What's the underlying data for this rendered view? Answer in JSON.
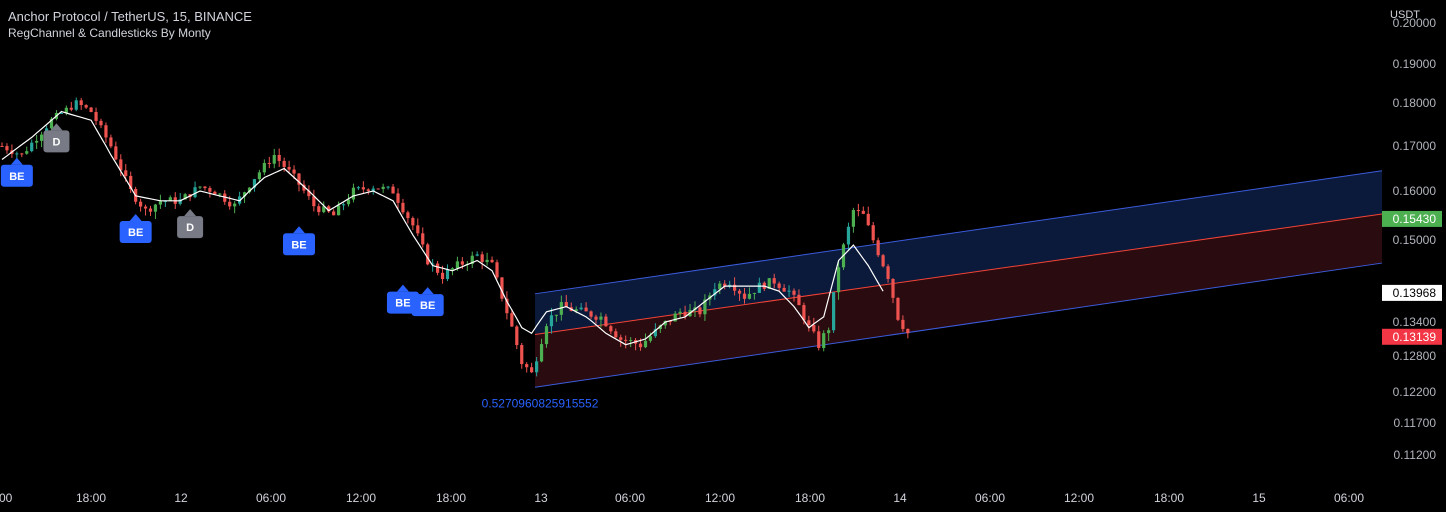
{
  "header": {
    "title": "Anchor Protocol / TetherUS, 15, BINANCE",
    "indicator": "RegChannel & Candlesticks By Monty"
  },
  "colors": {
    "background": "#000000",
    "text": "#d1d4dc",
    "up_candle": "#26a69a",
    "up_candle_alt": "#4caf50",
    "down_candle": "#ef5350",
    "ma_line": "#ffffff",
    "channel_line": "#3b5bdb",
    "channel_mid": "#f44336",
    "channel_upper_fill": "#0b1a3a",
    "channel_lower_fill": "#2a0b10",
    "be_marker": "#2962ff",
    "d_marker": "#787b86",
    "last_price_box": "#4caf50",
    "reg_mid_box": "#ffffff",
    "current_box": "#f23645",
    "annotation_text": "#2962ff"
  },
  "chart_data": {
    "type": "candlestick",
    "unit_label": "USDT",
    "y_ticks": [
      "0.20000",
      "0.19000",
      "0.18000",
      "0.17000",
      "0.16000",
      "0.15000",
      "0.13400",
      "0.12800",
      "0.12200",
      "0.11700",
      "0.11200"
    ],
    "y_tick_values": [
      0.2,
      0.19,
      0.18,
      0.17,
      0.16,
      0.15,
      0.134,
      0.128,
      0.122,
      0.117,
      0.112
    ],
    "ylim": [
      0.108,
      0.201
    ],
    "x_ticks": [
      ":00",
      "18:00",
      "12",
      "06:00",
      "12:00",
      "18:00",
      "13",
      "06:00",
      "12:00",
      "18:00",
      "14",
      "06:00",
      "12:00",
      "18:00",
      "15",
      "06:00"
    ],
    "price_labels": [
      {
        "text": "0.15430",
        "value": 0.1543,
        "style": "last"
      },
      {
        "text": "0.13968",
        "value": 0.13968,
        "style": "regmid"
      },
      {
        "text": "0.13139",
        "value": 0.13139,
        "style": "current"
      }
    ],
    "regression_channel": {
      "upper": [
        0.1395,
        0.1645
      ],
      "mid": [
        0.1318,
        0.1553
      ],
      "lower": [
        0.1228,
        0.1455
      ],
      "start_label": "0.5270960825915552",
      "start_label_value": 0.1205
    },
    "price_path": [
      [
        0,
        0.17
      ],
      [
        4,
        0.168
      ],
      [
        10,
        0.176
      ],
      [
        15,
        0.18
      ],
      [
        18,
        0.178
      ],
      [
        22,
        0.17
      ],
      [
        26,
        0.16
      ],
      [
        29,
        0.156
      ],
      [
        32,
        0.158
      ],
      [
        36,
        0.158
      ],
      [
        40,
        0.161
      ],
      [
        43,
        0.16
      ],
      [
        47,
        0.157
      ],
      [
        51,
        0.163
      ],
      [
        55,
        0.168
      ],
      [
        59,
        0.163
      ],
      [
        63,
        0.157
      ],
      [
        67,
        0.155
      ],
      [
        71,
        0.16
      ],
      [
        75,
        0.161
      ],
      [
        79,
        0.16
      ],
      [
        83,
        0.153
      ],
      [
        86,
        0.146
      ],
      [
        89,
        0.143
      ],
      [
        92,
        0.145
      ],
      [
        96,
        0.147
      ],
      [
        99,
        0.145
      ],
      [
        102,
        0.136
      ],
      [
        105,
        0.127
      ],
      [
        107,
        0.125
      ],
      [
        110,
        0.134
      ],
      [
        113,
        0.137
      ],
      [
        117,
        0.136
      ],
      [
        121,
        0.135
      ],
      [
        125,
        0.131
      ],
      [
        129,
        0.13
      ],
      [
        133,
        0.133
      ],
      [
        137,
        0.136
      ],
      [
        141,
        0.136
      ],
      [
        144,
        0.141
      ],
      [
        147,
        0.142
      ],
      [
        150,
        0.139
      ],
      [
        153,
        0.141
      ],
      [
        156,
        0.142
      ],
      [
        159,
        0.14
      ],
      [
        161,
        0.137
      ],
      [
        163,
        0.133
      ],
      [
        165,
        0.13
      ],
      [
        167,
        0.133
      ],
      [
        169,
        0.145
      ],
      [
        172,
        0.156
      ],
      [
        174,
        0.155
      ],
      [
        176,
        0.15
      ],
      [
        179,
        0.143
      ],
      [
        181,
        0.135
      ],
      [
        183,
        0.132
      ]
    ],
    "ma_path": [
      [
        0,
        0.167
      ],
      [
        6,
        0.172
      ],
      [
        12,
        0.178
      ],
      [
        18,
        0.176
      ],
      [
        22,
        0.168
      ],
      [
        27,
        0.159
      ],
      [
        32,
        0.158
      ],
      [
        36,
        0.158
      ],
      [
        40,
        0.16
      ],
      [
        44,
        0.159
      ],
      [
        48,
        0.158
      ],
      [
        53,
        0.163
      ],
      [
        57,
        0.165
      ],
      [
        61,
        0.161
      ],
      [
        66,
        0.156
      ],
      [
        71,
        0.159
      ],
      [
        75,
        0.16
      ],
      [
        79,
        0.158
      ],
      [
        83,
        0.151
      ],
      [
        87,
        0.145
      ],
      [
        91,
        0.144
      ],
      [
        96,
        0.146
      ],
      [
        99,
        0.144
      ],
      [
        102,
        0.138
      ],
      [
        105,
        0.133
      ],
      [
        107,
        0.132
      ],
      [
        110,
        0.136
      ],
      [
        114,
        0.137
      ],
      [
        118,
        0.135
      ],
      [
        122,
        0.132
      ],
      [
        126,
        0.13
      ],
      [
        130,
        0.131
      ],
      [
        134,
        0.134
      ],
      [
        138,
        0.135
      ],
      [
        142,
        0.138
      ],
      [
        146,
        0.141
      ],
      [
        150,
        0.141
      ],
      [
        154,
        0.141
      ],
      [
        157,
        0.14
      ],
      [
        160,
        0.137
      ],
      [
        163,
        0.133
      ],
      [
        166,
        0.135
      ],
      [
        169,
        0.146
      ],
      [
        172,
        0.149
      ],
      [
        175,
        0.145
      ],
      [
        178,
        0.14
      ]
    ],
    "markers": [
      {
        "label": "BE",
        "kind": "be",
        "bar": 3,
        "value": 0.1676,
        "pos": "below"
      },
      {
        "label": "D",
        "kind": "d",
        "bar": 11,
        "value": 0.1755,
        "pos": "below"
      },
      {
        "label": "BE",
        "kind": "be",
        "bar": 27,
        "value": 0.1555,
        "pos": "below"
      },
      {
        "label": "D",
        "kind": "d",
        "bar": 38,
        "value": 0.1565,
        "pos": "below"
      },
      {
        "label": "BE",
        "kind": "be",
        "bar": 60,
        "value": 0.153,
        "pos": "below"
      },
      {
        "label": "BE",
        "kind": "be",
        "bar": 81,
        "value": 0.1415,
        "pos": "below"
      },
      {
        "label": "BE",
        "kind": "be",
        "bar": 86,
        "value": 0.141,
        "pos": "below"
      }
    ]
  }
}
